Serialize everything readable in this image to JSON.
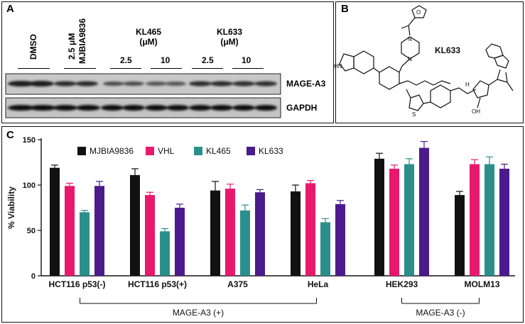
{
  "panel_a": {
    "label": "A",
    "lanes": {
      "dmso": "DMSO",
      "mjbia_conc": "2.5 μM",
      "mjbia_name": "MJBIA9836"
    },
    "kl465_title": "KL465",
    "kl633_title": "KL633",
    "conc_unit": "(μM)",
    "concentrations": [
      "2.5",
      "10",
      "2.5",
      "10"
    ],
    "blots": [
      "MAGE-A3",
      "GAPDH"
    ]
  },
  "panel_b": {
    "label": "B",
    "compound_name": "KL633",
    "atom_labels": {
      "nh": "HN",
      "n1": "N",
      "n2": "N",
      "o": "O",
      "s": "S",
      "oh": "OH",
      "h": "H"
    }
  },
  "panel_c": {
    "label": "C"
  },
  "chart_data": {
    "type": "bar",
    "title": "",
    "ylabel": "% Viability",
    "xlabel": "",
    "ylim": [
      0,
      150
    ],
    "yticks": [
      0,
      50,
      100,
      150
    ],
    "categories": [
      "HCT116 p53(-)",
      "HCT116 p53(+)",
      "A375",
      "HeLa",
      "HEK293",
      "MOLM13"
    ],
    "series": [
      {
        "name": "MJBIA9836",
        "color": "#111111",
        "values": [
          119,
          111,
          94,
          93,
          129,
          89
        ],
        "errors": [
          3,
          7,
          10,
          7,
          6,
          4
        ]
      },
      {
        "name": "VHL",
        "color": "#e8196d",
        "values": [
          99,
          89,
          96,
          102,
          118,
          123
        ],
        "errors": [
          3,
          3,
          5,
          3,
          4,
          5
        ]
      },
      {
        "name": "KL465",
        "color": "#2a8f8a",
        "values": [
          70,
          49,
          72,
          59,
          123,
          123
        ],
        "errors": [
          2,
          3,
          6,
          4,
          6,
          8
        ]
      },
      {
        "name": "KL633",
        "color": "#4b1a8c",
        "values": [
          99,
          75,
          92,
          79,
          141,
          118
        ],
        "errors": [
          5,
          4,
          3,
          4,
          7,
          5
        ]
      }
    ],
    "legend_position": "top",
    "brackets": [
      {
        "label": "MAGE-A3 (+)"
      },
      {
        "label": "MAGE-A3 (-)"
      }
    ]
  }
}
